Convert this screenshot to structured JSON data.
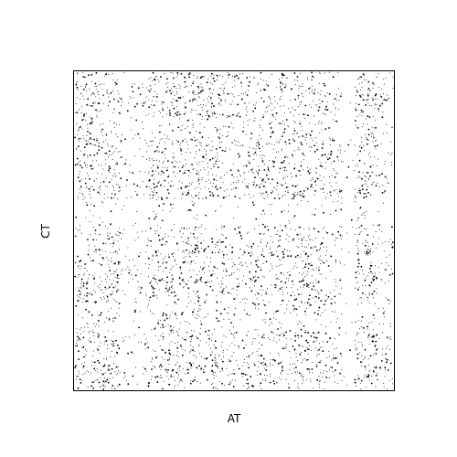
{
  "chart_data": {
    "type": "scatter",
    "title": "",
    "xlabel": "AT",
    "ylabel": "CT",
    "xlim": [
      0,
      1
    ],
    "ylim": [
      0,
      1
    ],
    "grid": false,
    "legend": "none",
    "ticks": "none",
    "marker_color": "#000000",
    "point_count": 4200,
    "description_of_distribution": "",
    "x_bands": [
      {
        "range": [
          0.0,
          0.14
        ],
        "density": 1.0
      },
      {
        "range": [
          0.14,
          0.23
        ],
        "density": 0.35
      },
      {
        "range": [
          0.23,
          0.46
        ],
        "density": 1.0
      },
      {
        "range": [
          0.46,
          0.64
        ],
        "density": 0.75
      },
      {
        "range": [
          0.64,
          0.78
        ],
        "density": 0.95
      },
      {
        "range": [
          0.78,
          0.84
        ],
        "density": 0.55
      },
      {
        "range": [
          0.84,
          0.88
        ],
        "density": 0.12
      },
      {
        "range": [
          0.88,
          0.95
        ],
        "density": 0.9
      },
      {
        "range": [
          0.95,
          1.0
        ],
        "density": 0.5
      }
    ],
    "y_bands": [
      {
        "range": [
          0.0,
          0.18
        ],
        "density": 1.0
      },
      {
        "range": [
          0.18,
          0.27
        ],
        "density": 0.55
      },
      {
        "range": [
          0.27,
          0.45
        ],
        "density": 1.0
      },
      {
        "range": [
          0.45,
          0.52
        ],
        "density": 0.85
      },
      {
        "range": [
          0.52,
          0.6
        ],
        "density": 0.25
      },
      {
        "range": [
          0.6,
          0.8
        ],
        "density": 1.0
      },
      {
        "range": [
          0.8,
          0.86
        ],
        "density": 0.55
      },
      {
        "range": [
          0.86,
          1.0
        ],
        "density": 0.95
      }
    ]
  }
}
